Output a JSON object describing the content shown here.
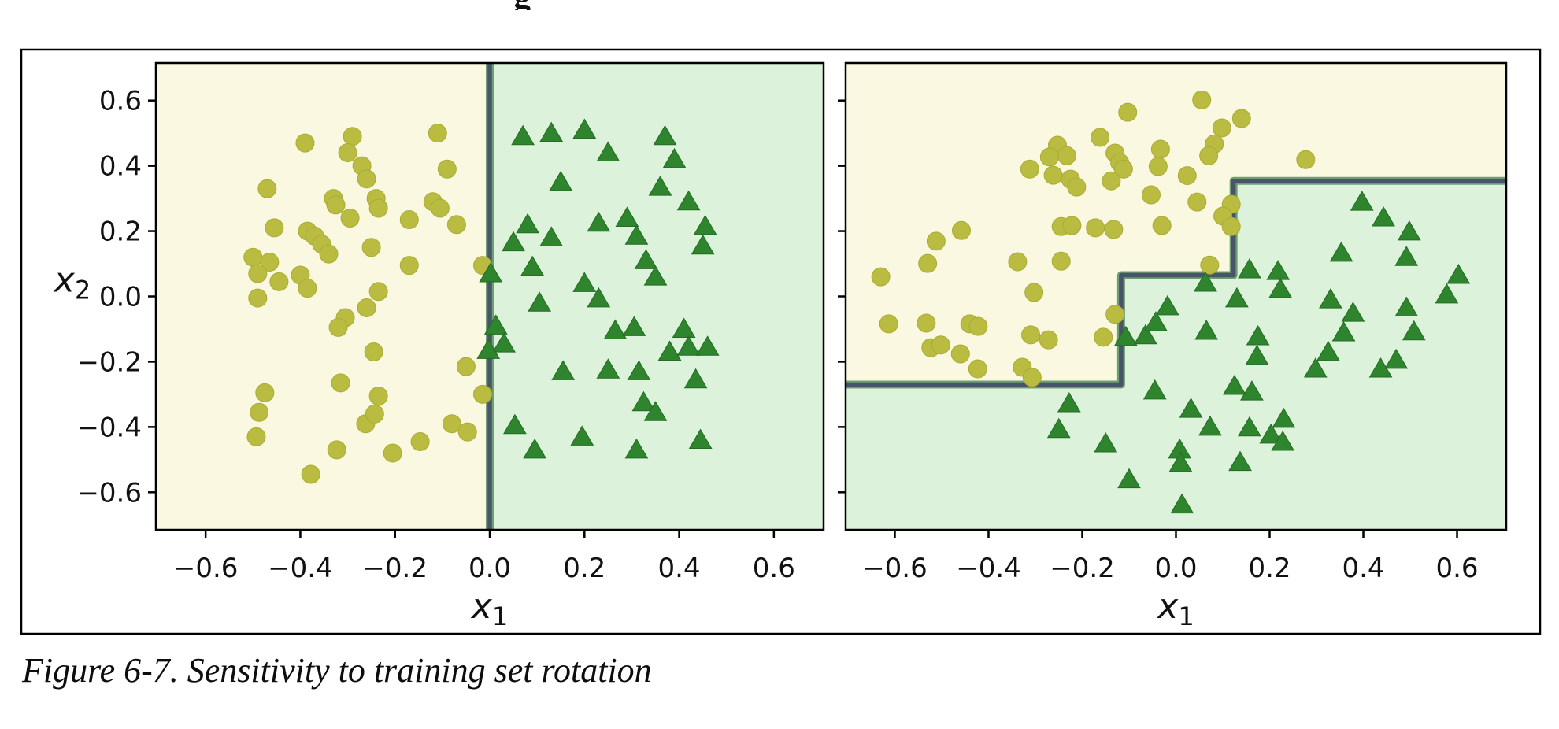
{
  "figure": {
    "clipped_top_text": "g",
    "caption": "Figure 6-7. Sensitivity to training set rotation"
  },
  "colors": {
    "region_class_a": "#fbf8e1",
    "region_class_b": "#dcf2db",
    "marker_circle": "#b9bc41",
    "marker_circle_edge": "#a9ac35",
    "marker_triangle": "#2e852e",
    "marker_triangle_edge": "#246b24",
    "boundary_core": "#49536b",
    "boundary_fringe": "#6e9f70",
    "axis": "#000000",
    "figure_border": "#000000"
  },
  "chart_data": [
    {
      "type": "scatter",
      "title": "",
      "xlabel": {
        "base": "x",
        "sub": "1"
      },
      "ylabel": {
        "base": "x",
        "sub": "2"
      },
      "xlim": [
        -0.705,
        0.705
      ],
      "ylim": [
        -0.715,
        0.715
      ],
      "grid": false,
      "legend": null,
      "xticks": [
        -0.6,
        -0.4,
        -0.2,
        0.0,
        0.2,
        0.4,
        0.6
      ],
      "xticklabels": [
        "−0.6",
        "−0.4",
        "−0.2",
        "0.0",
        "0.2",
        "0.4",
        "0.6"
      ],
      "yticks": [
        0.6,
        0.4,
        0.2,
        0.0,
        -0.2,
        -0.4,
        -0.6
      ],
      "yticklabels": [
        "0.6",
        "0.4",
        "0.2",
        "0.0",
        "−0.2",
        "−0.4",
        "−0.6"
      ],
      "decision_boundary": [
        [
          0,
          -0.715
        ],
        [
          0,
          0.715
        ]
      ],
      "regions": {
        "class_a_polygon": [
          [
            -0.705,
            -0.715
          ],
          [
            0,
            -0.715
          ],
          [
            0,
            0.715
          ],
          [
            -0.705,
            0.715
          ]
        ],
        "class_b_polygon": [
          [
            0,
            -0.715
          ],
          [
            0.705,
            -0.715
          ],
          [
            0.705,
            0.715
          ],
          [
            0,
            0.715
          ]
        ]
      },
      "series": [
        {
          "name": "class-0-circles",
          "marker": "circle",
          "points": [
            [
              -0.29,
              0.49
            ],
            [
              -0.11,
              0.5
            ],
            [
              -0.39,
              0.47
            ],
            [
              -0.3,
              0.44
            ],
            [
              -0.27,
              0.4
            ],
            [
              -0.09,
              0.39
            ],
            [
              -0.26,
              0.36
            ],
            [
              -0.47,
              0.33
            ],
            [
              -0.33,
              0.3
            ],
            [
              -0.24,
              0.3
            ],
            [
              -0.12,
              0.29
            ],
            [
              -0.325,
              0.28
            ],
            [
              -0.295,
              0.24
            ],
            [
              -0.235,
              0.27
            ],
            [
              -0.17,
              0.235
            ],
            [
              -0.105,
              0.27
            ],
            [
              -0.07,
              0.22
            ],
            [
              -0.455,
              0.21
            ],
            [
              -0.385,
              0.2
            ],
            [
              -0.37,
              0.185
            ],
            [
              -0.355,
              0.16
            ],
            [
              -0.34,
              0.13
            ],
            [
              -0.25,
              0.15
            ],
            [
              -0.5,
              0.12
            ],
            [
              -0.465,
              0.105
            ],
            [
              -0.49,
              0.07
            ],
            [
              -0.17,
              0.095
            ],
            [
              -0.015,
              0.095
            ],
            [
              -0.445,
              0.045
            ],
            [
              -0.4,
              0.065
            ],
            [
              -0.385,
              0.025
            ],
            [
              -0.49,
              -0.005
            ],
            [
              -0.235,
              0.015
            ],
            [
              -0.26,
              -0.035
            ],
            [
              -0.305,
              -0.065
            ],
            [
              -0.32,
              -0.095
            ],
            [
              -0.245,
              -0.17
            ],
            [
              -0.05,
              -0.215
            ],
            [
              -0.015,
              -0.3
            ],
            [
              -0.315,
              -0.265
            ],
            [
              -0.235,
              -0.305
            ],
            [
              -0.475,
              -0.295
            ],
            [
              -0.487,
              -0.355
            ],
            [
              -0.493,
              -0.43
            ],
            [
              -0.378,
              -0.545
            ],
            [
              -0.323,
              -0.47
            ],
            [
              -0.262,
              -0.39
            ],
            [
              -0.243,
              -0.36
            ],
            [
              -0.205,
              -0.48
            ],
            [
              -0.147,
              -0.445
            ],
            [
              -0.08,
              -0.39
            ],
            [
              -0.047,
              -0.415
            ]
          ]
        },
        {
          "name": "class-1-triangles",
          "marker": "triangle",
          "points": [
            [
              0.07,
              0.49
            ],
            [
              0.13,
              0.5
            ],
            [
              0.2,
              0.51
            ],
            [
              0.25,
              0.44
            ],
            [
              0.37,
              0.49
            ],
            [
              0.39,
              0.42
            ],
            [
              0.15,
              0.35
            ],
            [
              0.36,
              0.335
            ],
            [
              0.42,
              0.29
            ],
            [
              0.08,
              0.22
            ],
            [
              0.05,
              0.165
            ],
            [
              0.13,
              0.18
            ],
            [
              0.23,
              0.225
            ],
            [
              0.29,
              0.24
            ],
            [
              0.31,
              0.185
            ],
            [
              0.455,
              0.215
            ],
            [
              0.45,
              0.155
            ],
            [
              0.002,
              0.07
            ],
            [
              0.09,
              0.09
            ],
            [
              0.33,
              0.11
            ],
            [
              0.35,
              0.06
            ],
            [
              0.2,
              0.04
            ],
            [
              0.23,
              -0.007
            ],
            [
              0.105,
              -0.02
            ],
            [
              0.013,
              -0.09
            ],
            [
              0.03,
              -0.145
            ],
            [
              -0.003,
              -0.165
            ],
            [
              0.265,
              -0.105
            ],
            [
              0.305,
              -0.095
            ],
            [
              0.41,
              -0.1
            ],
            [
              0.38,
              -0.17
            ],
            [
              0.42,
              -0.155
            ],
            [
              0.46,
              -0.155
            ],
            [
              0.155,
              -0.23
            ],
            [
              0.25,
              -0.225
            ],
            [
              0.315,
              -0.23
            ],
            [
              0.435,
              -0.255
            ],
            [
              0.325,
              -0.325
            ],
            [
              0.35,
              -0.355
            ],
            [
              0.053,
              -0.395
            ],
            [
              0.095,
              -0.47
            ],
            [
              0.195,
              -0.43
            ],
            [
              0.31,
              -0.47
            ],
            [
              0.445,
              -0.44
            ]
          ]
        }
      ]
    },
    {
      "type": "scatter",
      "title": "",
      "xlabel": {
        "base": "x",
        "sub": "1"
      },
      "ylabel": null,
      "xlim": [
        -0.705,
        0.705
      ],
      "ylim": [
        -0.715,
        0.715
      ],
      "grid": false,
      "legend": null,
      "xticks": [
        -0.6,
        -0.4,
        -0.2,
        0.0,
        0.2,
        0.4,
        0.6
      ],
      "xticklabels": [
        "−0.6",
        "−0.4",
        "−0.2",
        "0.0",
        "0.2",
        "0.4",
        "0.6"
      ],
      "yticks": [
        0.6,
        0.4,
        0.2,
        0.0,
        -0.2,
        -0.4,
        -0.6
      ],
      "yticklabels": [],
      "decision_boundary": [
        [
          -0.705,
          -0.27
        ],
        [
          -0.117,
          -0.27
        ],
        [
          -0.117,
          0.065
        ],
        [
          0.123,
          0.065
        ],
        [
          0.123,
          0.354
        ],
        [
          0.705,
          0.354
        ]
      ],
      "regions": {
        "class_a_polygon": [
          [
            -0.705,
            0.715
          ],
          [
            0.705,
            0.715
          ],
          [
            0.705,
            0.354
          ],
          [
            0.123,
            0.354
          ],
          [
            0.123,
            0.065
          ],
          [
            -0.117,
            0.065
          ],
          [
            -0.117,
            -0.27
          ],
          [
            -0.705,
            -0.27
          ]
        ],
        "class_b_polygon": [
          [
            -0.705,
            -0.27
          ],
          [
            -0.117,
            -0.27
          ],
          [
            -0.117,
            0.065
          ],
          [
            0.123,
            0.065
          ],
          [
            0.123,
            0.354
          ],
          [
            0.705,
            0.354
          ],
          [
            0.705,
            -0.715
          ],
          [
            -0.705,
            -0.715
          ]
        ]
      },
      "series": [
        {
          "name": "class-0-circles",
          "marker": "circle",
          "points": [
            [
              -0.103,
              0.564
            ],
            [
              0.055,
              0.602
            ],
            [
              -0.162,
              0.487
            ],
            [
              -0.253,
              0.463
            ],
            [
              -0.233,
              0.431
            ],
            [
              -0.27,
              0.427
            ],
            [
              -0.312,
              0.39
            ],
            [
              -0.262,
              0.371
            ],
            [
              -0.225,
              0.359
            ],
            [
              -0.212,
              0.335
            ],
            [
              -0.13,
              0.439
            ],
            [
              -0.12,
              0.41
            ],
            [
              -0.112,
              0.39
            ],
            [
              -0.138,
              0.354
            ],
            [
              -0.033,
              0.451
            ],
            [
              -0.038,
              0.398
            ],
            [
              0.024,
              0.37
            ],
            [
              0.14,
              0.545
            ],
            [
              0.098,
              0.516
            ],
            [
              0.082,
              0.467
            ],
            [
              0.07,
              0.431
            ],
            [
              0.277,
              0.419
            ],
            [
              0.045,
              0.289
            ],
            [
              0.118,
              0.282
            ],
            [
              0.1,
              0.246
            ],
            [
              0.118,
              0.214
            ],
            [
              -0.053,
              0.311
            ],
            [
              -0.03,
              0.217
            ],
            [
              -0.245,
              0.214
            ],
            [
              -0.222,
              0.217
            ],
            [
              -0.172,
              0.21
            ],
            [
              -0.133,
              0.205
            ],
            [
              -0.458,
              0.202
            ],
            [
              -0.512,
              0.169
            ],
            [
              -0.53,
              0.101
            ],
            [
              -0.63,
              0.06
            ],
            [
              -0.338,
              0.106
            ],
            [
              -0.245,
              0.108
            ],
            [
              0.072,
              0.096
            ],
            [
              -0.303,
              0.012
            ],
            [
              -0.613,
              -0.084
            ],
            [
              -0.533,
              -0.082
            ],
            [
              -0.523,
              -0.157
            ],
            [
              -0.502,
              -0.149
            ],
            [
              -0.44,
              -0.084
            ],
            [
              -0.422,
              -0.092
            ],
            [
              -0.46,
              -0.176
            ],
            [
              -0.423,
              -0.222
            ],
            [
              -0.31,
              -0.118
            ],
            [
              -0.272,
              -0.133
            ],
            [
              -0.328,
              -0.217
            ],
            [
              -0.307,
              -0.248
            ],
            [
              -0.155,
              -0.125
            ],
            [
              -0.13,
              -0.055
            ]
          ]
        },
        {
          "name": "class-1-triangles",
          "marker": "triangle",
          "points": [
            [
              0.397,
              0.289
            ],
            [
              0.443,
              0.241
            ],
            [
              0.498,
              0.198
            ],
            [
              0.353,
              0.133
            ],
            [
              0.492,
              0.12
            ],
            [
              0.157,
              0.082
            ],
            [
              0.218,
              0.077
            ],
            [
              0.223,
              0.022
            ],
            [
              0.603,
              0.065
            ],
            [
              0.578,
              0.005
            ],
            [
              0.063,
              0.041
            ],
            [
              0.13,
              -0.007
            ],
            [
              0.33,
              -0.01
            ],
            [
              0.492,
              -0.035
            ],
            [
              -0.107,
              -0.125
            ],
            [
              -0.065,
              -0.12
            ],
            [
              -0.018,
              -0.031
            ],
            [
              -0.043,
              -0.08
            ],
            [
              -0.228,
              -0.328
            ],
            [
              -0.25,
              -0.407
            ],
            [
              -0.15,
              -0.451
            ],
            [
              -0.045,
              -0.289
            ],
            [
              0.008,
              -0.47
            ],
            [
              0.01,
              -0.511
            ],
            [
              -0.1,
              -0.561
            ],
            [
              0.013,
              -0.638
            ],
            [
              0.378,
              -0.051
            ],
            [
              0.065,
              -0.106
            ],
            [
              0.175,
              -0.123
            ],
            [
              0.358,
              -0.111
            ],
            [
              0.508,
              -0.108
            ],
            [
              0.173,
              -0.183
            ],
            [
              0.325,
              -0.171
            ],
            [
              0.298,
              -0.222
            ],
            [
              0.437,
              -0.222
            ],
            [
              0.47,
              -0.195
            ],
            [
              0.125,
              -0.275
            ],
            [
              0.162,
              -0.292
            ],
            [
              0.032,
              -0.345
            ],
            [
              0.073,
              -0.4
            ],
            [
              0.157,
              -0.402
            ],
            [
              0.203,
              -0.424
            ],
            [
              0.23,
              -0.376
            ],
            [
              0.228,
              -0.446
            ],
            [
              0.137,
              -0.508
            ]
          ]
        }
      ]
    }
  ]
}
